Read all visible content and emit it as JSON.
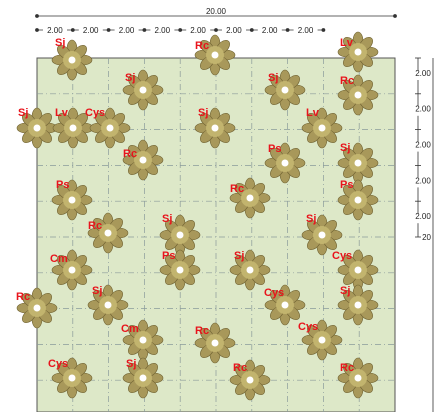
{
  "dimensions": {
    "total_width": "20.00",
    "top_segments": [
      "2.00",
      "2.00",
      "2.00",
      "2.00",
      "2.00",
      "2.00",
      "2.00",
      "2.00"
    ],
    "right_segments": [
      "2.00",
      "2.00",
      "2.00",
      "2.00",
      "2.00"
    ],
    "total_height": "20"
  },
  "plants": [
    {
      "label": "Sj"
    },
    {
      "label": "Rc"
    },
    {
      "label": "Lv"
    },
    {
      "label": "Sj"
    },
    {
      "label": "Sj"
    },
    {
      "label": "Rc"
    },
    {
      "label": "Sj"
    },
    {
      "label": "Lv"
    },
    {
      "label": "Cys"
    },
    {
      "label": "Sj"
    },
    {
      "label": "Lv"
    },
    {
      "label": "Rc"
    },
    {
      "label": "Ps"
    },
    {
      "label": "Sj"
    },
    {
      "label": "Rc"
    },
    {
      "label": "Ps"
    },
    {
      "label": "Ps"
    },
    {
      "label": "Rc"
    },
    {
      "label": "Sj"
    },
    {
      "label": "Sj"
    },
    {
      "label": "Cm"
    },
    {
      "label": "Ps"
    },
    {
      "label": "Sj"
    },
    {
      "label": "Cys"
    },
    {
      "label": "Rc"
    },
    {
      "label": "Sj"
    },
    {
      "label": "Cys"
    },
    {
      "label": "Sj"
    },
    {
      "label": "Cm"
    },
    {
      "label": "Rc"
    },
    {
      "label": "Cys"
    },
    {
      "label": "Cys"
    },
    {
      "label": "Sj"
    },
    {
      "label": "Rc"
    },
    {
      "label": "Rc"
    }
  ]
}
